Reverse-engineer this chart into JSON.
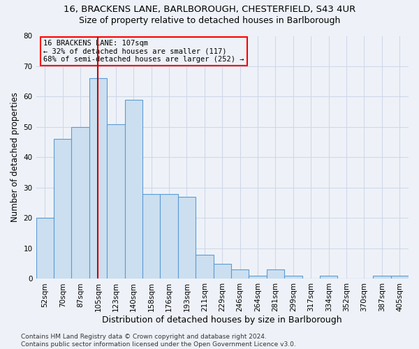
{
  "title_line1": "16, BRACKENS LANE, BARLBOROUGH, CHESTERFIELD, S43 4UR",
  "title_line2": "Size of property relative to detached houses in Barlborough",
  "xlabel": "Distribution of detached houses by size in Barlborough",
  "ylabel": "Number of detached properties",
  "categories": [
    "52sqm",
    "70sqm",
    "87sqm",
    "105sqm",
    "123sqm",
    "140sqm",
    "158sqm",
    "176sqm",
    "193sqm",
    "211sqm",
    "229sqm",
    "246sqm",
    "264sqm",
    "281sqm",
    "299sqm",
    "317sqm",
    "334sqm",
    "352sqm",
    "370sqm",
    "387sqm",
    "405sqm"
  ],
  "values": [
    20,
    46,
    50,
    66,
    51,
    59,
    28,
    28,
    27,
    8,
    5,
    3,
    1,
    3,
    1,
    0,
    1,
    0,
    0,
    1,
    1
  ],
  "bar_color_fill": "#ccdff0",
  "bar_color_edge": "#5b9bd5",
  "background_color": "#eef2f8",
  "ylim": [
    0,
    80
  ],
  "yticks": [
    0,
    10,
    20,
    30,
    40,
    50,
    60,
    70,
    80
  ],
  "annotation_text": "16 BRACKENS LANE: 107sqm\n← 32% of detached houses are smaller (117)\n68% of semi-detached houses are larger (252) →",
  "footnote": "Contains HM Land Registry data © Crown copyright and database right 2024.\nContains public sector information licensed under the Open Government Licence v3.0.",
  "property_bar_index": 3,
  "title_fontsize": 9.5,
  "subtitle_fontsize": 9,
  "xlabel_fontsize": 9,
  "ylabel_fontsize": 8.5,
  "tick_fontsize": 7.5,
  "annotation_fontsize": 7.5,
  "footnote_fontsize": 6.5,
  "red_line_color": "#cc0000",
  "grid_color": "#d0d8e8"
}
